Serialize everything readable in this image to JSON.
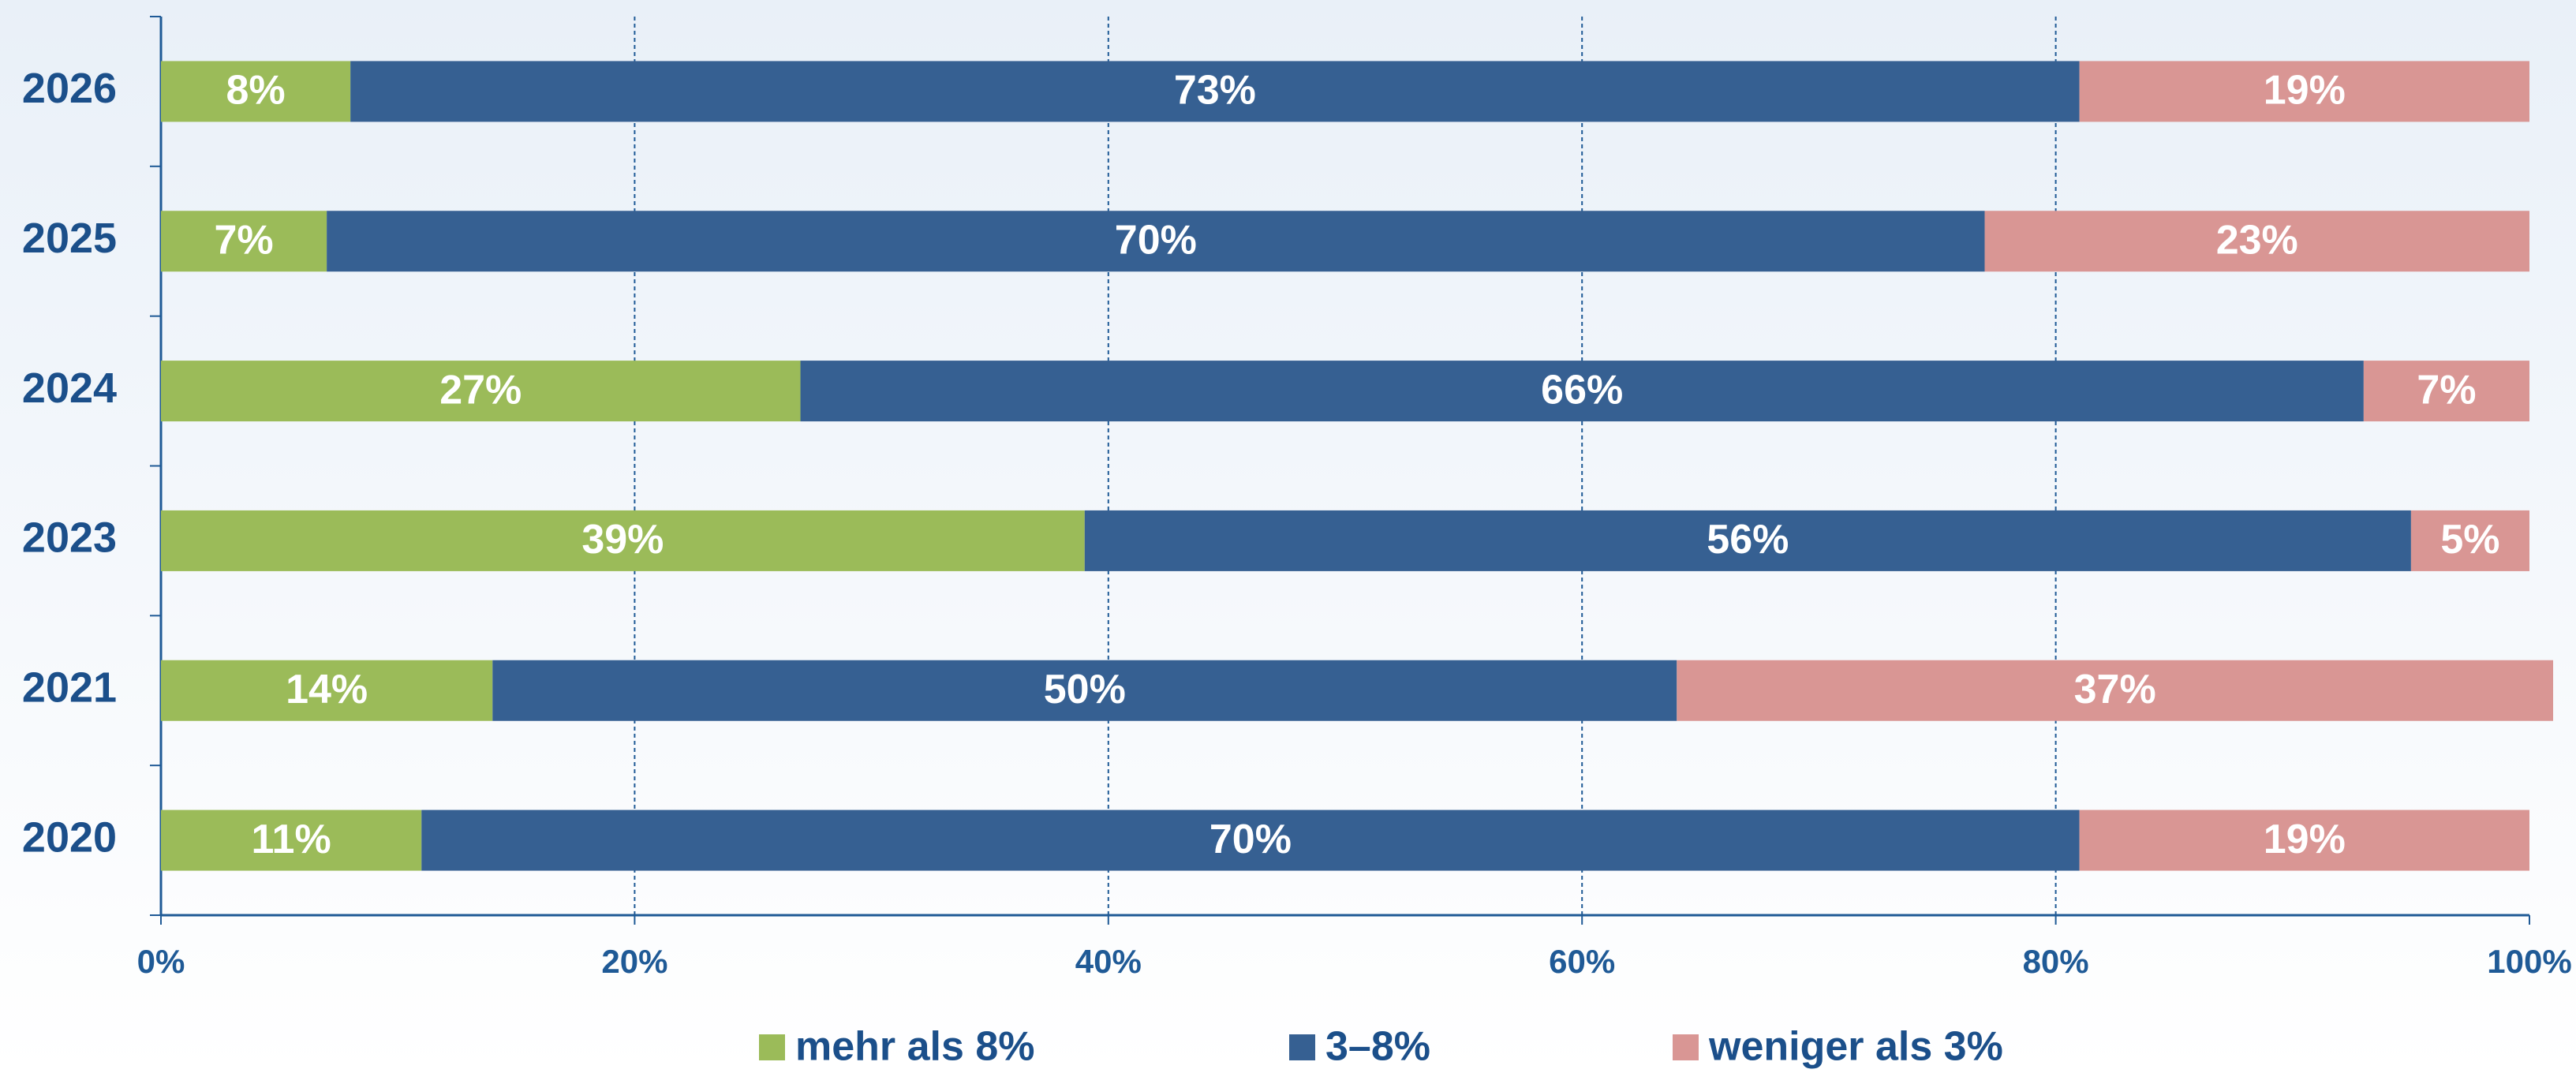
{
  "chart_data": {
    "type": "stacked_barh",
    "categories": [
      "2026",
      "2025",
      "2024",
      "2023",
      "2021",
      "2020"
    ],
    "series": [
      {
        "name": "mehr als 8%",
        "color": "#9bbb59",
        "values": [
          8,
          7,
          27,
          39,
          14,
          11
        ],
        "value_labels": [
          "8%",
          "7%",
          "27%",
          "39%",
          "14%",
          "11%"
        ]
      },
      {
        "name": "3–8%",
        "color": "#366092",
        "values": [
          73,
          70,
          66,
          56,
          50,
          70
        ],
        "value_labels": [
          "73%",
          "70%",
          "66%",
          "56%",
          "50%",
          "70%"
        ]
      },
      {
        "name": "weniger als 3%",
        "color": "#d99694",
        "values": [
          19,
          23,
          7,
          5,
          37,
          19
        ],
        "value_labels": [
          "19%",
          "23%",
          "7%",
          "5%",
          "37%",
          "19%"
        ]
      }
    ],
    "xlim": [
      0,
      100
    ],
    "xticks": [
      {
        "value": 0,
        "label": "0%"
      },
      {
        "value": 20,
        "label": "20%"
      },
      {
        "value": 40,
        "label": "40%"
      },
      {
        "value": 60,
        "label": "60%"
      },
      {
        "value": 80,
        "label": "80%"
      },
      {
        "value": 100,
        "label": "100%"
      }
    ],
    "grid": true,
    "legend": "bottom"
  }
}
